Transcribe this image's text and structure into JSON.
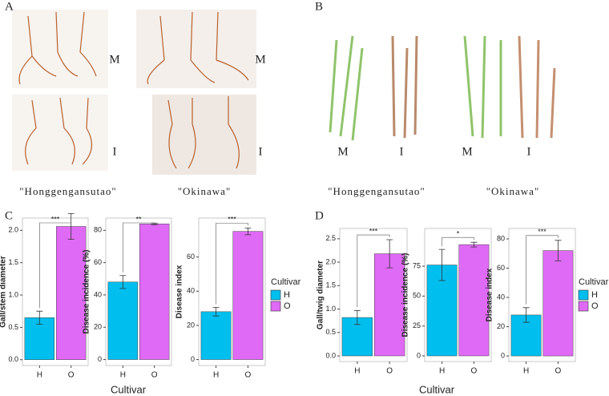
{
  "photo_panels": [
    {
      "label": "A",
      "marks": [
        "M",
        "I",
        "M",
        "I"
      ],
      "cultivars": [
        "\"Honggengansutao\"",
        "\"Okinawa\""
      ]
    },
    {
      "label": "B",
      "marks": [
        "M",
        "I",
        "M",
        "I"
      ],
      "cultivars": [
        "\"Honggengansutao\"",
        "\"Okinawa\""
      ]
    }
  ],
  "chart_panels": [
    {
      "label": "C",
      "xlabel": "Cultivar",
      "legend": {
        "title": "Cultivar",
        "entries": [
          "H",
          "O"
        ]
      }
    },
    {
      "label": "D",
      "xlabel": "Cultivar",
      "legend": {
        "title": "Cultivar",
        "entries": [
          "H",
          "O"
        ]
      }
    }
  ],
  "chart_data": [
    {
      "type": "bar",
      "ylabel": "Gall/stem diameter",
      "categories": [
        "H",
        "O"
      ],
      "values": [
        0.65,
        2.06
      ],
      "errors": [
        0.1,
        0.2
      ],
      "colors": [
        "#00bfef",
        "#df6af5"
      ],
      "significance": "***",
      "ylim": [
        -0.09,
        2.19
      ],
      "yticks": [
        {
          "value": 0,
          "label": "0.0"
        },
        0.5,
        {
          "value": 1,
          "label": "1.0"
        },
        1.5,
        {
          "value": 2,
          "label": "2.0"
        }
      ]
    },
    {
      "type": "bar",
      "ylabel": "Disease incidence (%)",
      "categories": [
        "H",
        "O"
      ],
      "values": [
        48,
        84
      ],
      "errors": [
        4,
        0.5
      ],
      "colors": [
        "#00bfef",
        "#df6af5"
      ],
      "significance": "**",
      "ylim": [
        -3.7,
        87.6
      ],
      "yticks": [
        0,
        20,
        40,
        60,
        80
      ]
    },
    {
      "type": "bar",
      "ylabel": "Disease index",
      "categories": [
        "H",
        "O"
      ],
      "values": [
        28,
        75
      ],
      "errors": [
        2.5,
        2
      ],
      "colors": [
        "#00bfef",
        "#df6af5"
      ],
      "significance": "***",
      "ylim": [
        -3.5,
        82.8
      ],
      "yticks": [
        0,
        20,
        40,
        60
      ]
    },
    {
      "type": "bar",
      "ylabel": "Gall/twig diameter",
      "categories": [
        "H",
        "O"
      ],
      "values": [
        0.82,
        2.18
      ],
      "errors": [
        0.15,
        0.3
      ],
      "colors": [
        "#00bfef",
        "#df6af5"
      ],
      "significance": "***",
      "ylim": [
        -0.12,
        2.72
      ],
      "yticks": [
        {
          "value": 0,
          "label": "0.0"
        },
        0.5,
        {
          "value": 1,
          "label": "1.0"
        },
        1.5,
        {
          "value": 2,
          "label": "2.0"
        },
        2.5
      ]
    },
    {
      "type": "bar",
      "ylabel": "Disease incidence (%)",
      "categories": [
        "H",
        "O"
      ],
      "values": [
        76,
        93
      ],
      "errors": [
        13,
        2
      ],
      "colors": [
        "#00bfef",
        "#df6af5"
      ],
      "significance": "*",
      "ylim": [
        -4.7,
        106.5
      ],
      "yticks": [
        0,
        25,
        50,
        75
      ]
    },
    {
      "type": "bar",
      "ylabel": "Disease index",
      "categories": [
        "H",
        "O"
      ],
      "values": [
        28,
        72
      ],
      "errors": [
        5,
        7
      ],
      "colors": [
        "#00bfef",
        "#df6af5"
      ],
      "significance": "***",
      "ylim": [
        -3.8,
        87.1
      ],
      "yticks": [
        0,
        20,
        40,
        60,
        80
      ]
    }
  ]
}
